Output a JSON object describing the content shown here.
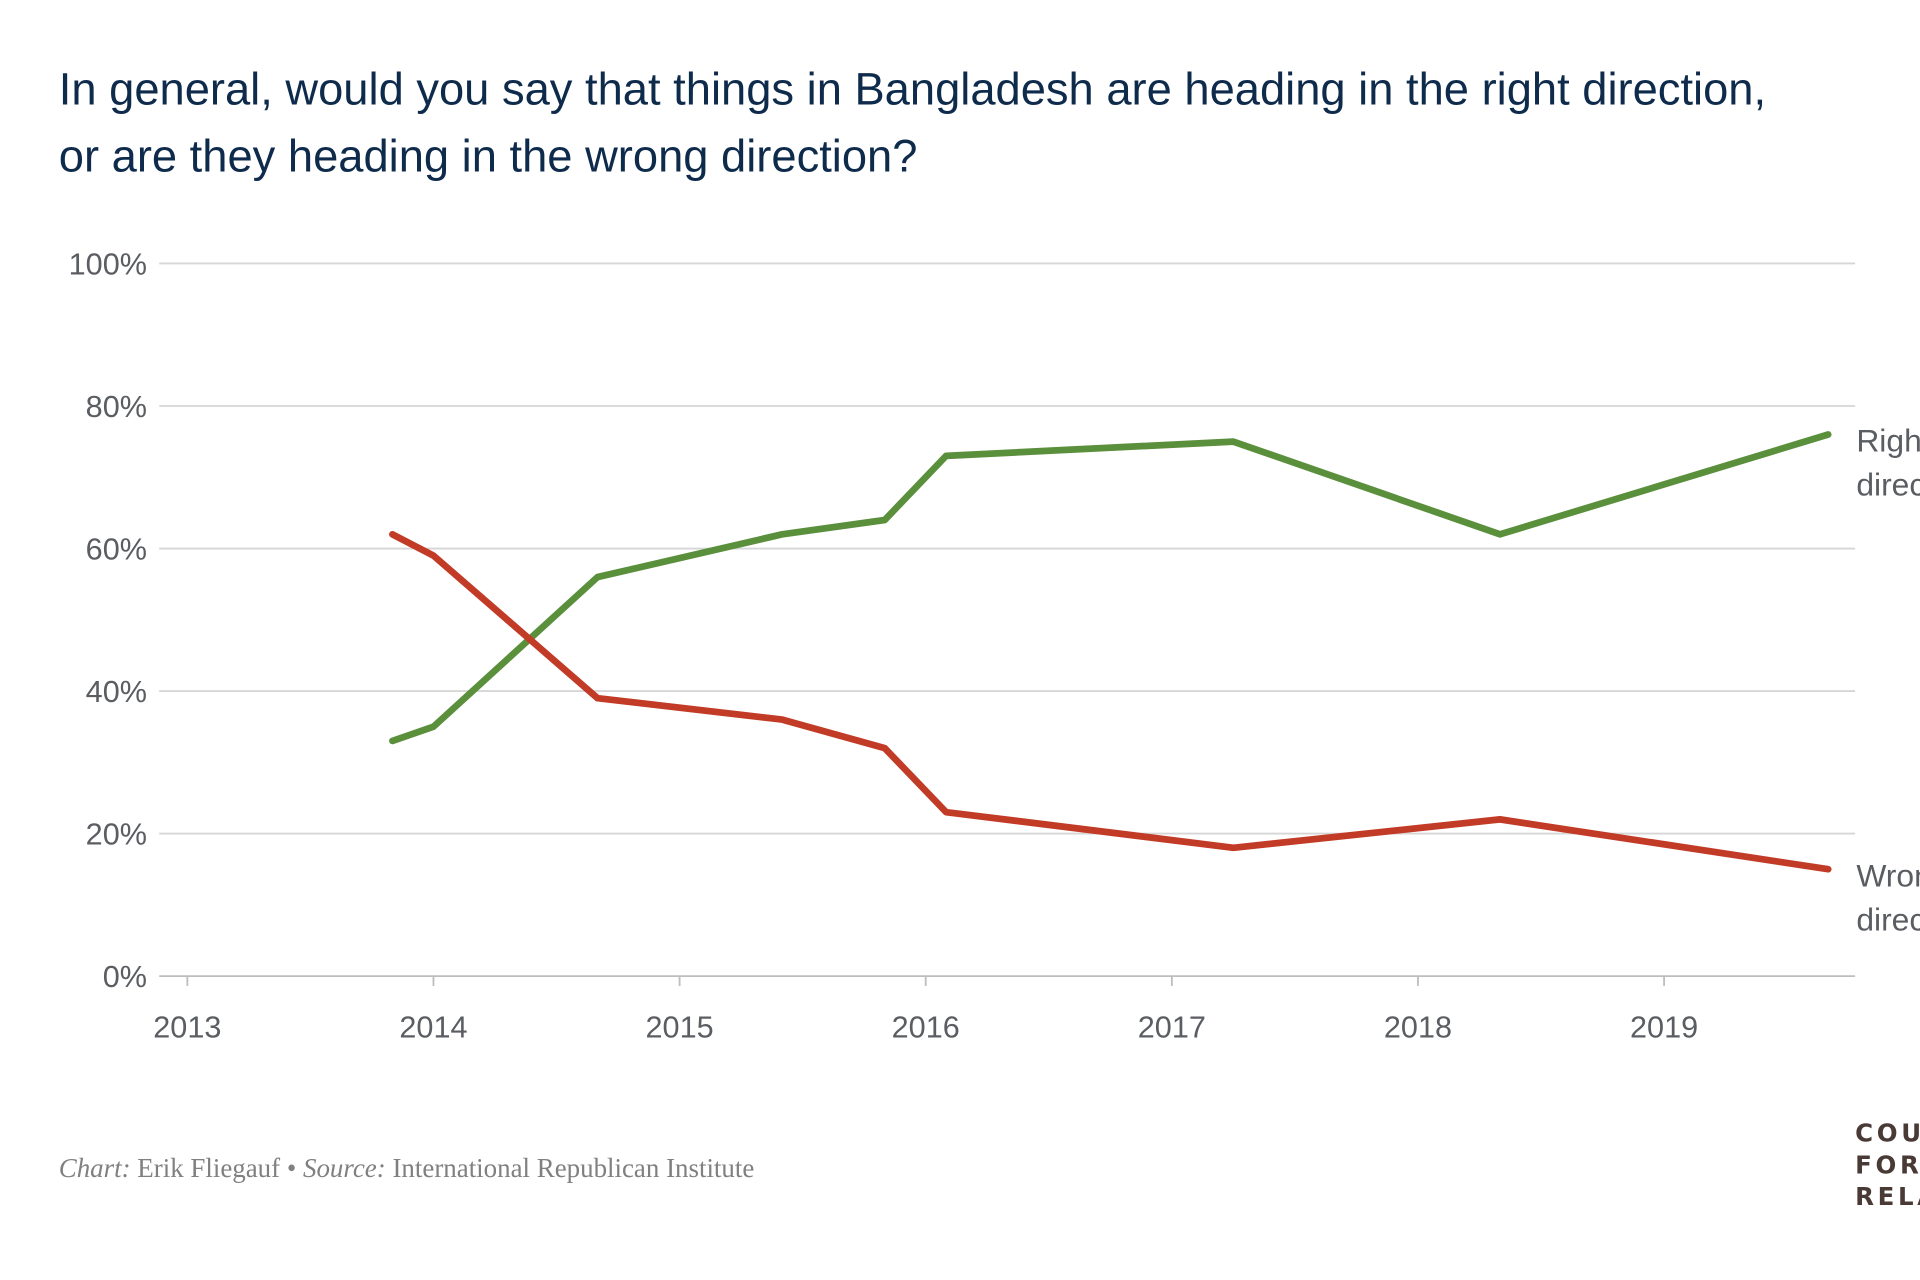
{
  "chart_data": {
    "type": "line",
    "title_lines": [
      "In general, would you say that things in Bangladesh are heading in the right direction,",
      "or are they heading in the wrong direction?"
    ],
    "xlabel": "",
    "ylabel": "",
    "xlim": [
      2013,
      2019.9
    ],
    "ylim": [
      0,
      100
    ],
    "x_ticks": [
      "2013",
      "2014",
      "2015",
      "2016",
      "2017",
      "2018",
      "2019"
    ],
    "y_ticks": [
      "0%",
      "20%",
      "40%",
      "60%",
      "80%",
      "100%"
    ],
    "grid": "horizontal",
    "legend": "direct labels at line ends (right)",
    "x": [
      "2013-11",
      "2014-01",
      "2014-09",
      "2015-06",
      "2015-11",
      "2016-02",
      "2017-04",
      "2018-05",
      "2019-09"
    ],
    "series": [
      {
        "name": "Right direction",
        "label_lines": [
          "Right",
          "direction"
        ],
        "color": "#5a8f3c",
        "values": [
          33,
          35,
          56,
          62,
          64,
          73,
          75,
          62,
          76
        ]
      },
      {
        "name": "Wrong direction",
        "label_lines": [
          "Wrong",
          "direction"
        ],
        "color": "#c23b26",
        "values": [
          62,
          59,
          39,
          36,
          32,
          23,
          18,
          22,
          15
        ]
      }
    ]
  },
  "footer": {
    "chart_label": "Chart:",
    "chart_author": " Erik Fliegauf • ",
    "source_label": "Source:",
    "source_name": " International Republican Institute"
  },
  "logo": {
    "lines": [
      "COUNCIL on",
      "FOREIGN",
      "RELATIONS"
    ]
  },
  "colors": {
    "title": "#0f2b4c",
    "grid": "#d6d6d6",
    "axis_text": "#5a5d61"
  }
}
